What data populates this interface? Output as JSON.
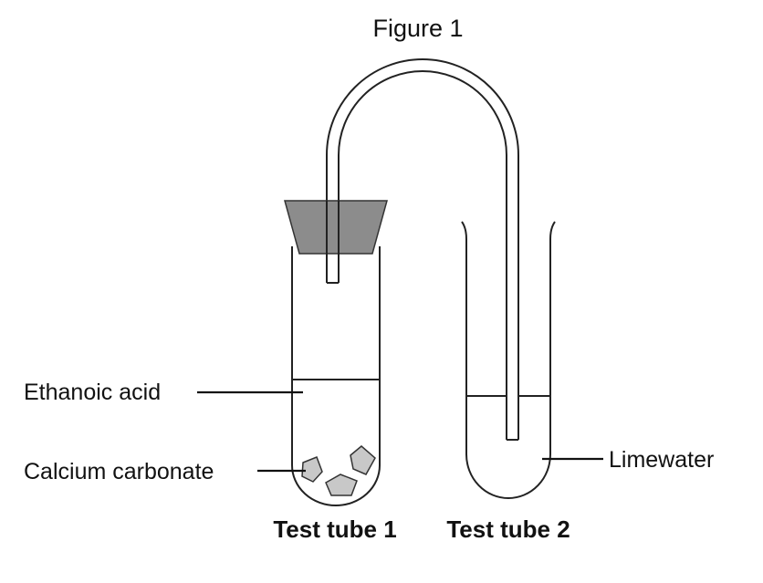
{
  "figure": {
    "title": "Figure 1"
  },
  "labels": {
    "ethanoic_acid": "Ethanoic acid",
    "calcium_carbonate": "Calcium carbonate",
    "limewater": "Limewater"
  },
  "captions": {
    "test_tube_1": "Test tube 1",
    "test_tube_2": "Test tube 2"
  },
  "colors": {
    "bung": "#8c8c8c",
    "chips": "#c8c8c8",
    "line": "#222222"
  }
}
